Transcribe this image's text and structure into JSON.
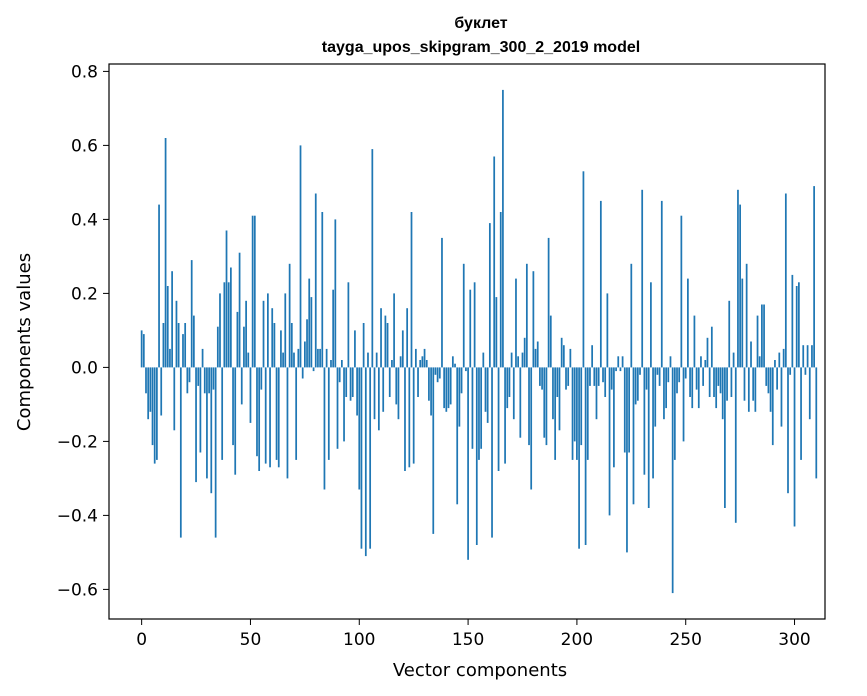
{
  "chart_data": {
    "type": "bar",
    "title_line1": "буклет",
    "title_line2": "tayga_upos_skipgram_300_2_2019 model",
    "xlabel": "Vector components",
    "ylabel": "Components values",
    "xlim": [
      -15,
      314
    ],
    "ylim": [
      -0.68,
      0.82
    ],
    "xticks": [
      0,
      50,
      100,
      150,
      200,
      250,
      300
    ],
    "xtick_labels": [
      "0",
      "50",
      "100",
      "150",
      "200",
      "250",
      "300"
    ],
    "yticks": [
      -0.6,
      -0.4,
      -0.2,
      0.0,
      0.2,
      0.4,
      0.6,
      0.8
    ],
    "ytick_labels": [
      "−0.6",
      "−0.4",
      "−0.2",
      "0.0",
      "0.2",
      "0.4",
      "0.6",
      "0.8"
    ],
    "bar_color": "#1f77b4",
    "grid": false,
    "values": [
      0.1,
      0.09,
      -0.07,
      -0.14,
      -0.12,
      -0.21,
      -0.26,
      -0.25,
      0.44,
      -0.13,
      0.12,
      0.62,
      0.22,
      0.05,
      0.26,
      -0.17,
      0.18,
      0.12,
      -0.46,
      0.09,
      0.12,
      -0.07,
      -0.04,
      0.29,
      0.14,
      -0.31,
      -0.05,
      -0.23,
      0.05,
      -0.07,
      -0.3,
      -0.07,
      -0.34,
      -0.06,
      -0.46,
      0.11,
      0.2,
      -0.25,
      0.23,
      0.37,
      0.23,
      0.27,
      -0.21,
      -0.29,
      0.15,
      0.31,
      -0.1,
      0.11,
      0.18,
      0.04,
      -0.15,
      0.41,
      0.41,
      -0.24,
      -0.28,
      -0.06,
      0.18,
      -0.26,
      0.2,
      -0.27,
      0.16,
      0.12,
      -0.25,
      -0.27,
      0.1,
      0.04,
      0.2,
      -0.3,
      0.28,
      0.12,
      0.04,
      -0.25,
      0.05,
      0.6,
      -0.03,
      0.07,
      0.13,
      0.24,
      0.19,
      -0.01,
      0.47,
      0.05,
      0.05,
      0.42,
      -0.33,
      0.05,
      -0.25,
      0.02,
      0.21,
      0.4,
      -0.22,
      -0.04,
      0.02,
      -0.2,
      -0.08,
      0.23,
      -0.09,
      -0.08,
      0.1,
      -0.13,
      -0.33,
      -0.49,
      0.12,
      -0.51,
      0.04,
      -0.49,
      0.59,
      -0.14,
      0.04,
      -0.17,
      0.16,
      -0.12,
      0.14,
      0.12,
      -0.08,
      0.02,
      0.2,
      -0.1,
      -0.14,
      0.03,
      0.1,
      -0.28,
      0.16,
      -0.27,
      0.42,
      -0.26,
      0.05,
      -0.08,
      0.02,
      0.03,
      0.05,
      0.02,
      -0.09,
      -0.13,
      -0.45,
      -0.02,
      -0.04,
      -0.03,
      0.35,
      -0.11,
      -0.12,
      -0.11,
      -0.1,
      0.03,
      0.01,
      -0.37,
      -0.16,
      -0.07,
      0.28,
      -0.01,
      -0.52,
      0.21,
      -0.22,
      0.23,
      -0.48,
      -0.25,
      -0.22,
      0.04,
      -0.12,
      -0.15,
      0.39,
      -0.46,
      0.57,
      0.19,
      -0.28,
      0.42,
      0.75,
      -0.26,
      -0.11,
      -0.08,
      0.04,
      -0.14,
      0.24,
      0.03,
      -0.19,
      0.04,
      0.08,
      0.28,
      -0.21,
      -0.33,
      0.26,
      0.05,
      0.07,
      -0.05,
      -0.06,
      -0.19,
      -0.21,
      0.35,
      0.14,
      -0.14,
      -0.25,
      -0.08,
      -0.17,
      0.08,
      0.06,
      -0.06,
      -0.05,
      0.05,
      -0.25,
      -0.2,
      -0.25,
      -0.49,
      -0.21,
      0.53,
      -0.48,
      -0.25,
      -0.05,
      0.06,
      -0.05,
      -0.14,
      -0.05,
      0.45,
      -0.04,
      -0.08,
      0.2,
      -0.4,
      -0.06,
      -0.27,
      -0.01,
      0.03,
      -0.01,
      0.03,
      -0.23,
      -0.5,
      -0.23,
      0.28,
      -0.37,
      -0.1,
      -0.09,
      -0.02,
      0.48,
      -0.29,
      -0.06,
      -0.38,
      0.23,
      -0.3,
      -0.16,
      -0.02,
      -0.05,
      0.45,
      -0.14,
      -0.11,
      -0.04,
      0.03,
      -0.61,
      -0.25,
      -0.07,
      -0.04,
      0.41,
      -0.2,
      -0.03,
      0.24,
      -0.08,
      -0.11,
      0.14,
      -0.06,
      -0.11,
      0.03,
      -0.05,
      0.02,
      0.08,
      -0.08,
      0.11,
      -0.08,
      -0.11,
      -0.05,
      -0.07,
      -0.14,
      -0.38,
      -0.09,
      0.18,
      -0.08,
      0.04,
      -0.42,
      0.48,
      0.44,
      0.24,
      -0.09,
      0.28,
      -0.12,
      0.07,
      -0.09,
      -0.12,
      0.14,
      0.03,
      0.17,
      0.17,
      -0.05,
      -0.07,
      -0.12,
      -0.21,
      0.02,
      -0.06,
      0.04,
      -0.16,
      0.05,
      0.47,
      -0.34,
      -0.02,
      0.25,
      -0.43,
      0.22,
      0.23,
      -0.25,
      0.06,
      -0.02,
      0.06,
      -0.14,
      0.06,
      0.49,
      -0.3
    ]
  }
}
